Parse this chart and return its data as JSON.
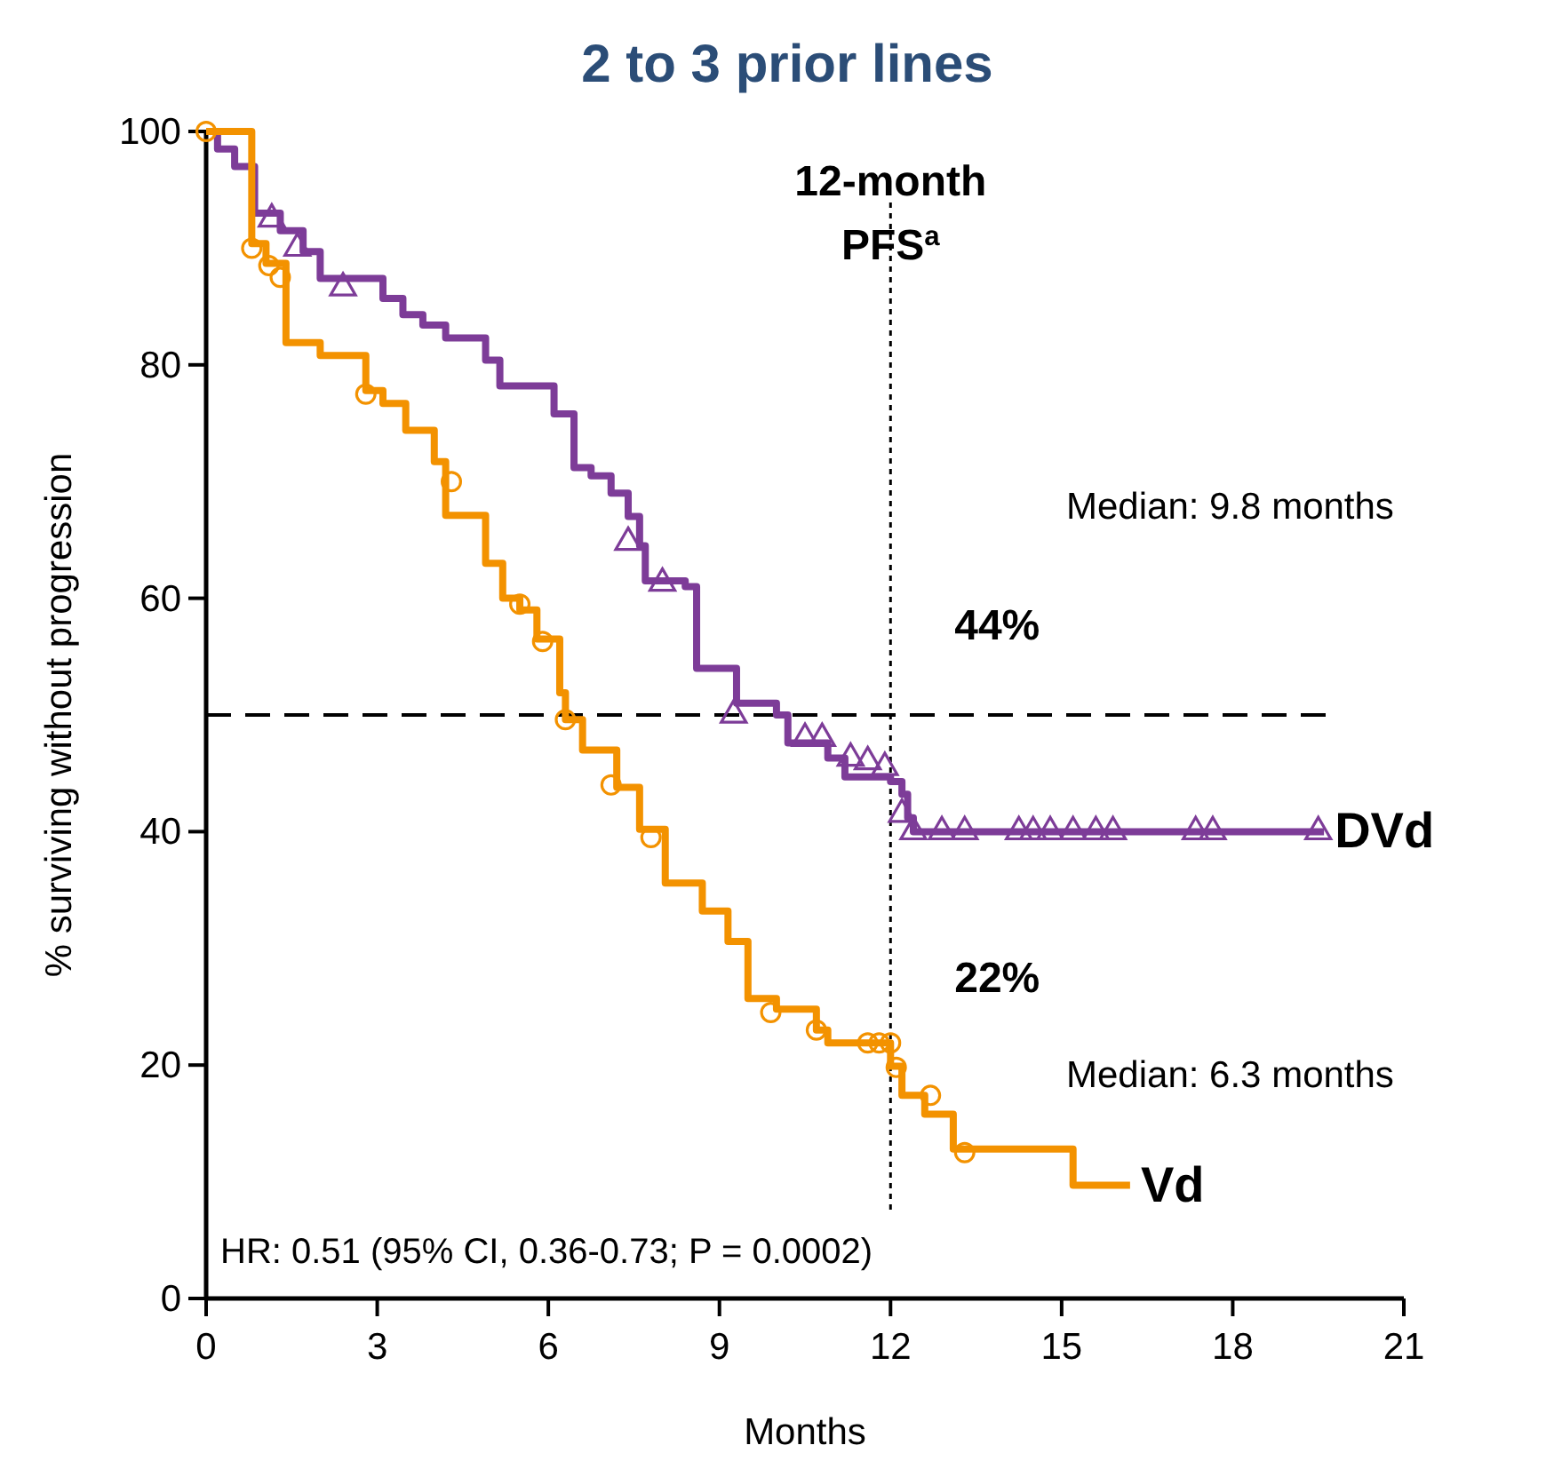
{
  "chart_data": {
    "type": "step",
    "title": "2 to 3 prior lines",
    "xlabel": "Months",
    "ylabel": "% surviving without progression",
    "xlim": [
      0,
      21
    ],
    "xticks": [
      0,
      3,
      6,
      9,
      12,
      15,
      18,
      21
    ],
    "ylim": [
      0,
      100
    ],
    "yticks": [
      0,
      20,
      40,
      60,
      80,
      100
    ],
    "grid": false,
    "legend": false,
    "series": [
      {
        "name": "DVd",
        "color": "#7d3c98",
        "marker": "none",
        "x": [
          0,
          0.2,
          0.5,
          0.85,
          1.3,
          1.7,
          2.0,
          3.1,
          3.45,
          3.8,
          4.2,
          4.9,
          5.15,
          6.1,
          6.45,
          6.75,
          7.1,
          7.4,
          7.6,
          7.7,
          8.4,
          8.6,
          9.3,
          10.0,
          10.2,
          10.9,
          11.2,
          12.0,
          12.2,
          12.3,
          12.4,
          19.6
        ],
        "values": [
          100,
          98.5,
          97,
          93,
          91.5,
          89.7,
          87.4,
          85.7,
          84.3,
          83.4,
          82.3,
          80.4,
          78.2,
          75.8,
          71.2,
          70.5,
          69,
          67,
          64.5,
          61.5,
          61,
          54,
          51,
          50,
          47.6,
          46.3,
          44.7,
          44.3,
          43.2,
          41.2,
          40,
          40
        ]
      },
      {
        "name": "Vd",
        "color": "#f39200",
        "marker": "none",
        "x": [
          0,
          0.8,
          1.05,
          1.4,
          2.0,
          2.8,
          3.1,
          3.5,
          4.0,
          4.2,
          4.9,
          5.2,
          5.5,
          5.8,
          6.2,
          6.3,
          6.6,
          7.2,
          7.6,
          8.05,
          8.7,
          9.15,
          9.5,
          10.0,
          10.7,
          10.9,
          12.0,
          12.2,
          12.6,
          13.1,
          15.2,
          16.2
        ],
        "values": [
          100,
          90.4,
          88.7,
          81.9,
          80.8,
          77.8,
          76.7,
          74.4,
          71.7,
          67.1,
          63,
          60,
          59,
          56.5,
          51.9,
          49.6,
          47,
          43.8,
          40.2,
          35.6,
          33.2,
          30.6,
          25.7,
          24.8,
          23,
          21.9,
          19.9,
          17.4,
          15.8,
          12.8,
          9.7,
          9.7
        ]
      },
      {
        "type": "scatter",
        "color": "#7d3c98",
        "marker": "triangle",
        "x": [
          1.15,
          1.6,
          2.4,
          7.4,
          8.0,
          9.25,
          10.5,
          10.8,
          11.3,
          11.6,
          11.9,
          12.2,
          12.4,
          12.9,
          13.3,
          14.25,
          14.5,
          14.8,
          15.2,
          15.6,
          15.9,
          17.35,
          17.65,
          19.5
        ],
        "values": [
          92.5,
          90,
          86.6,
          64.8,
          61.3,
          50,
          48,
          48,
          46.3,
          46,
          45.5,
          41.5,
          40,
          40,
          40,
          40,
          40,
          40,
          40,
          40,
          40,
          40,
          40,
          40
        ]
      },
      {
        "type": "scatter",
        "color": "#f39200",
        "marker": "circle",
        "x": [
          0,
          0.8,
          1.1,
          1.3,
          2.8,
          4.3,
          5.5,
          5.9,
          6.3,
          7.1,
          7.8,
          9.9,
          10.7,
          11.6,
          11.8,
          12.0,
          12.1,
          12.7,
          13.3
        ],
        "values": [
          100,
          90,
          88.5,
          87.5,
          77.5,
          70,
          59.5,
          56.3,
          49.6,
          44,
          39.5,
          24.5,
          23,
          21.9,
          21.9,
          21.9,
          19.8,
          17.4,
          12.5
        ]
      }
    ],
    "ref_lines": [
      {
        "axis": "y",
        "value": 50,
        "line_style": "dashed",
        "color": "#000000"
      },
      {
        "axis": "x",
        "value": 12,
        "label": "12-month PFS$^{a}$",
        "line_style": "dotted",
        "color": "#000000"
      }
    ],
    "annotations": [
      "44%",
      "22%",
      "Median: 9.8 months",
      "Median: 6.3 months",
      "HR: 0.51 (95% CI, 0.36-0.73; P = 0.0002)"
    ]
  }
}
